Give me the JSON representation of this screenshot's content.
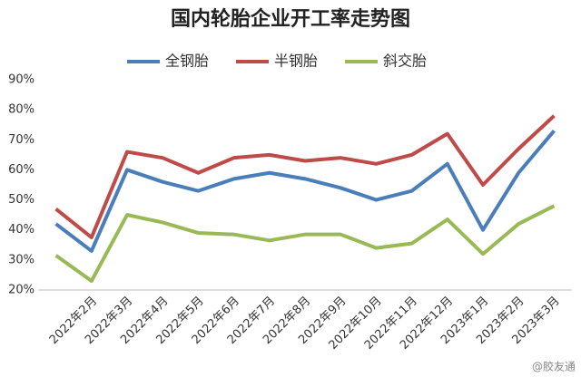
{
  "chart_data": {
    "type": "line",
    "title": "国内轮胎企业开工率走势图",
    "categories": [
      null,
      "2022年2月",
      "2022年3月",
      "2022年4月",
      "2022年5月",
      "2022年6月",
      "2022年7月",
      "2022年8月",
      "2022年9月",
      "2022年10月",
      "2022年11月",
      "2022年12月",
      "2023年1月",
      "2023年2月",
      "2023年3月"
    ],
    "series": [
      {
        "name": "全钢胎",
        "color": "#4a7ebb",
        "values": [
          42,
          33,
          60,
          56,
          53,
          57,
          59,
          57,
          54,
          50,
          53,
          62,
          40,
          59,
          73
        ]
      },
      {
        "name": "半钢胎",
        "color": "#be4b48",
        "values": [
          47,
          37.5,
          66,
          64,
          59,
          64,
          65,
          63,
          64,
          62,
          65,
          72,
          55,
          67,
          78
        ]
      },
      {
        "name": "斜交胎",
        "color": "#98b954",
        "values": [
          31.5,
          23,
          45,
          42.5,
          39,
          38.5,
          36.5,
          38.5,
          38.5,
          34,
          35.5,
          43.5,
          32,
          42,
          48
        ]
      }
    ],
    "ylim": [
      20,
      90
    ],
    "yticks": [
      {
        "value": 20,
        "label": "20%"
      },
      {
        "value": 30,
        "label": "30%"
      },
      {
        "value": 40,
        "label": "40%"
      },
      {
        "value": 50,
        "label": "50%"
      },
      {
        "value": 60,
        "label": "60%"
      },
      {
        "value": 70,
        "label": "70%"
      },
      {
        "value": 80,
        "label": "80%"
      },
      {
        "value": 90,
        "label": "90%"
      }
    ],
    "grid": false,
    "legend": "top",
    "watermark": "@胶友通"
  }
}
